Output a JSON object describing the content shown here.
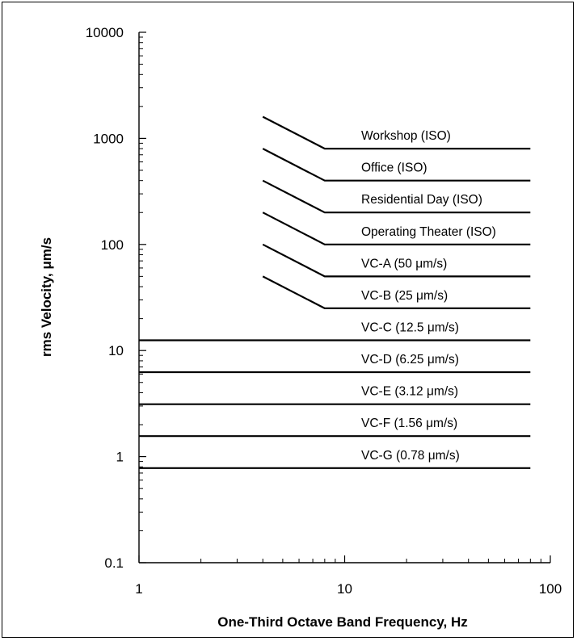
{
  "chart_data": {
    "type": "line",
    "title": "",
    "xlabel": "One-Third Octave Band Frequency, Hz",
    "ylabel": "rms Velocity, μm/s",
    "x_scale": "log",
    "y_scale": "log",
    "xlim": [
      1,
      100
    ],
    "ylim": [
      0.1,
      10000
    ],
    "x_ticks": [
      "1",
      "10",
      "100"
    ],
    "y_ticks": [
      "0.1",
      "1",
      "10",
      "100",
      "1000",
      "10000"
    ],
    "grid": false,
    "line_color": "#000000",
    "series": [
      {
        "name": "Workshop (ISO)",
        "x": [
          4,
          8,
          80
        ],
        "y": [
          1600,
          800,
          800
        ]
      },
      {
        "name": "Office (ISO)",
        "x": [
          4,
          8,
          80
        ],
        "y": [
          800,
          400,
          400
        ]
      },
      {
        "name": "Residential Day (ISO)",
        "x": [
          4,
          8,
          80
        ],
        "y": [
          400,
          200,
          200
        ]
      },
      {
        "name": "Operating Theater (ISO)",
        "x": [
          4,
          8,
          80
        ],
        "y": [
          200,
          100,
          100
        ]
      },
      {
        "name": "VC-A (50 μm/s)",
        "x": [
          4,
          8,
          80
        ],
        "y": [
          100,
          50,
          50
        ]
      },
      {
        "name": "VC-B (25 μm/s)",
        "x": [
          4,
          8,
          80
        ],
        "y": [
          50,
          25,
          25
        ]
      },
      {
        "name": "VC-C (12.5 μm/s)",
        "x": [
          1,
          80
        ],
        "y": [
          12.5,
          12.5
        ]
      },
      {
        "name": "VC-D (6.25 μm/s)",
        "x": [
          1,
          80
        ],
        "y": [
          6.25,
          6.25
        ]
      },
      {
        "name": "VC-E (3.12 μm/s)",
        "x": [
          1,
          80
        ],
        "y": [
          3.12,
          3.12
        ]
      },
      {
        "name": "VC-F (1.56 μm/s)",
        "x": [
          1,
          80
        ],
        "y": [
          1.56,
          1.56
        ]
      },
      {
        "name": "VC-G (0.78 μm/s)",
        "x": [
          1,
          80
        ],
        "y": [
          0.78,
          0.78
        ]
      }
    ]
  }
}
